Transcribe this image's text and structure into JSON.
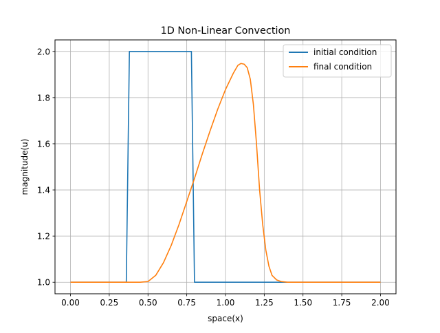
{
  "chart_data": {
    "type": "line",
    "title": "1D Non-Linear Convection",
    "xlabel": "space(x)",
    "ylabel": "magnitude(u)",
    "xlim": [
      -0.1,
      2.1
    ],
    "ylim": [
      0.95,
      2.05
    ],
    "xticks": [
      0.0,
      0.25,
      0.5,
      0.75,
      1.0,
      1.25,
      1.5,
      1.75,
      2.0
    ],
    "xtick_labels": [
      "0.00",
      "0.25",
      "0.50",
      "0.75",
      "1.00",
      "1.25",
      "1.50",
      "1.75",
      "2.00"
    ],
    "yticks": [
      1.0,
      1.2,
      1.4,
      1.6,
      1.8,
      2.0
    ],
    "ytick_labels": [
      "1.0",
      "1.2",
      "1.4",
      "1.6",
      "1.8",
      "2.0"
    ],
    "grid": true,
    "legend_position": "top-right",
    "series": [
      {
        "name": "initial condition",
        "color": "#1f77b4",
        "x": [
          0.0,
          0.36,
          0.38,
          0.78,
          0.8,
          2.0
        ],
        "y": [
          1.0,
          1.0,
          2.0,
          2.0,
          1.0,
          1.0
        ]
      },
      {
        "name": "final condition",
        "color": "#ff7f0e",
        "x": [
          0.0,
          0.4,
          0.45,
          0.5,
          0.55,
          0.6,
          0.65,
          0.7,
          0.75,
          0.8,
          0.85,
          0.9,
          0.95,
          1.0,
          1.05,
          1.08,
          1.1,
          1.12,
          1.14,
          1.16,
          1.18,
          1.2,
          1.22,
          1.24,
          1.26,
          1.28,
          1.3,
          1.33,
          1.36,
          1.4,
          1.5,
          2.0
        ],
        "y": [
          1.0,
          1.0,
          1.0,
          1.003,
          1.03,
          1.085,
          1.16,
          1.25,
          1.35,
          1.45,
          1.555,
          1.655,
          1.75,
          1.835,
          1.905,
          1.94,
          1.948,
          1.945,
          1.93,
          1.88,
          1.77,
          1.6,
          1.4,
          1.25,
          1.14,
          1.07,
          1.03,
          1.01,
          1.003,
          1.0,
          1.0,
          1.0
        ]
      }
    ]
  }
}
